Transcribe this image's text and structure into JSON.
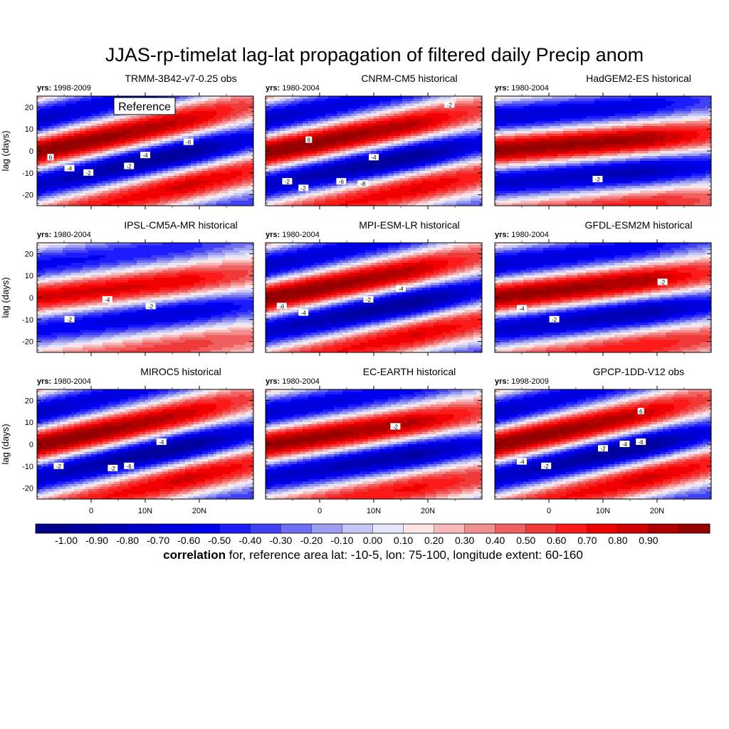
{
  "title": "JJAS-rp-timelat lag-lat propagation of filtered daily Precip anom",
  "ylabel": "lag (days)",
  "reference_box": "Reference",
  "yrs_label": "yrs:",
  "y_ticks": [
    "20",
    "10",
    "0",
    "-10",
    "-20"
  ],
  "x_ticks": [
    "0",
    "10N",
    "20N"
  ],
  "panels": [
    {
      "title": "TRMM-3B42-v7-0.25 obs",
      "yrs": "1998-2009",
      "phase": -0.45,
      "slope": 0.55,
      "amp": 1.0,
      "lag_shift": 0,
      "reference": true,
      "labels": [
        {
          "text": "6",
          "lat": -7.5,
          "lag": -3
        },
        {
          "text": "-4",
          "lat": -4,
          "lag": -8
        },
        {
          "text": "-2",
          "lat": -0.5,
          "lag": -10
        },
        {
          "text": "-2",
          "lat": 7,
          "lag": -7
        },
        {
          "text": "-4",
          "lat": 10,
          "lag": -2
        },
        {
          "text": "-6",
          "lat": 18,
          "lag": 4
        }
      ]
    },
    {
      "title": "CNRM-CM5 historical",
      "yrs": "1980-2004",
      "phase": -0.35,
      "slope": 0.5,
      "amp": 1.0,
      "lag_shift": 0,
      "reference": false,
      "labels": [
        {
          "text": "6",
          "lat": -2,
          "lag": 5
        },
        {
          "text": "-4",
          "lat": 10,
          "lag": -3
        },
        {
          "text": "-2",
          "lat": -6,
          "lag": -14
        },
        {
          "text": "-2",
          "lat": -3,
          "lag": -17
        },
        {
          "text": "-6",
          "lat": 4,
          "lag": -14
        },
        {
          "text": "-8",
          "lat": 8,
          "lag": -15
        },
        {
          "text": "-2",
          "lat": 24,
          "lag": 21
        }
      ]
    },
    {
      "title": "HadGEM2-ES historical",
      "yrs": "1980-2004",
      "phase": -0.25,
      "slope": 0.2,
      "amp": 0.95,
      "lag_shift": 0,
      "reference": false,
      "labels": [
        {
          "text": "-2",
          "lat": 9,
          "lag": -13
        }
      ]
    },
    {
      "title": "IPSL-CM5A-MR historical",
      "yrs": "1980-2004",
      "phase": -0.3,
      "slope": 0.3,
      "amp": 0.75,
      "lag_shift": 0,
      "reference": false,
      "labels": [
        {
          "text": "-4",
          "lat": 3,
          "lag": -1
        },
        {
          "text": "-2",
          "lat": -4,
          "lag": -10
        },
        {
          "text": "-2",
          "lat": 11,
          "lag": -4
        }
      ]
    },
    {
      "title": "MPI-ESM-LR historical",
      "yrs": "1980-2004",
      "phase": -0.4,
      "slope": 0.5,
      "amp": 1.0,
      "lag_shift": 0,
      "reference": false,
      "labels": [
        {
          "text": "-6",
          "lat": -7,
          "lag": -4
        },
        {
          "text": "-4",
          "lat": -3,
          "lag": -7
        },
        {
          "text": "-2",
          "lat": 9,
          "lag": -1
        },
        {
          "text": "-4",
          "lat": 15,
          "lag": 4
        }
      ]
    },
    {
      "title": "GFDL-ESM2M historical",
      "yrs": "1980-2004",
      "phase": -0.3,
      "slope": 0.3,
      "amp": 0.95,
      "lag_shift": 0,
      "reference": false,
      "labels": [
        {
          "text": "-4",
          "lat": -5,
          "lag": -5
        },
        {
          "text": "-2",
          "lat": 1,
          "lag": -10
        },
        {
          "text": "-2",
          "lat": 21,
          "lag": 7
        }
      ]
    },
    {
      "title": "MIROC5 historical",
      "yrs": "1980-2004",
      "phase": -0.45,
      "slope": 0.55,
      "amp": 1.0,
      "lag_shift": 0,
      "reference": false,
      "labels": [
        {
          "text": "-2",
          "lat": -6,
          "lag": -10
        },
        {
          "text": "-2",
          "lat": 4,
          "lag": -11
        },
        {
          "text": "-6",
          "lat": 7,
          "lag": -10
        },
        {
          "text": "-4",
          "lat": 13,
          "lag": 1
        }
      ]
    },
    {
      "title": "EC-EARTH historical",
      "yrs": "1980-2004",
      "phase": -0.3,
      "slope": 0.4,
      "amp": 0.95,
      "lag_shift": 0,
      "reference": false,
      "labels": [
        {
          "text": "-2",
          "lat": 14,
          "lag": 8
        }
      ]
    },
    {
      "title": "GPCP-1DD-V12 obs",
      "yrs": "1998-2009",
      "phase": -0.45,
      "slope": 0.55,
      "amp": 1.0,
      "lag_shift": 0,
      "reference": false,
      "labels": [
        {
          "text": "-4",
          "lat": -5,
          "lag": -8
        },
        {
          "text": "-2",
          "lat": -0.5,
          "lag": -10
        },
        {
          "text": "-2",
          "lat": 10,
          "lag": -2
        },
        {
          "text": "-4",
          "lat": 14,
          "lag": 0
        },
        {
          "text": "-6",
          "lat": 17,
          "lag": 1
        },
        {
          "text": "6",
          "lat": 17,
          "lag": 15
        }
      ]
    }
  ],
  "colorbar": {
    "labels": [
      "-1.00",
      "-0.90",
      "-0.80",
      "-0.70",
      "-0.60",
      "-0.50",
      "-0.40",
      "-0.30",
      "-0.20",
      "-0.10",
      "0.00",
      "0.10",
      "0.20",
      "0.30",
      "0.40",
      "0.50",
      "0.60",
      "0.70",
      "0.80",
      "0.90"
    ],
    "colors": [
      "#00008b",
      "#00009e",
      "#0000b2",
      "#0000c8",
      "#0000dd",
      "#0000f0",
      "#1c1cff",
      "#4040f5",
      "#6e6ef0",
      "#9c9cf0",
      "#c6c6f4",
      "#e6e6fa",
      "#ffe6e6",
      "#f8baba",
      "#f28e8e",
      "#f06060",
      "#f03a3a",
      "#ff1a1a",
      "#f00000",
      "#d00000",
      "#b00000",
      "#960000"
    ],
    "title_bold": "correlation",
    "title_rest": " for, reference area lat: -10-5, lon: 75-100, longitude extent: 60-160"
  },
  "chart_data": {
    "type": "heatmap",
    "title": "JJAS-rp-timelat lag-lat propagation of filtered daily Precip anom",
    "ylabel": "lag (days)",
    "xlabel": "",
    "x_range": [
      -10,
      30
    ],
    "y_range": [
      -25,
      25
    ],
    "x_ticks": [
      "0",
      "10N",
      "20N"
    ],
    "y_ticks": [
      20,
      10,
      0,
      -10,
      -20
    ],
    "contour_levels": [
      -1.0,
      -0.9,
      -0.8,
      -0.7,
      -0.6,
      -0.5,
      -0.4,
      -0.3,
      -0.2,
      -0.1,
      0.0,
      0.1,
      0.2,
      0.3,
      0.4,
      0.5,
      0.6,
      0.7,
      0.8,
      0.9
    ],
    "colorbar_label": "correlation for, reference area lat: -10-5, lon: 75-100, longitude extent: 60-160",
    "panels": [
      "TRMM-3B42-v7-0.25 obs",
      "CNRM-CM5 historical",
      "HadGEM2-ES historical",
      "IPSL-CM5A-MR historical",
      "MPI-ESM-LR historical",
      "GFDL-ESM2M historical",
      "MIROC5 historical",
      "EC-EARTH historical",
      "GPCP-1DD-V12 obs"
    ],
    "max_correlation_at_lag0_lat": -2
  }
}
